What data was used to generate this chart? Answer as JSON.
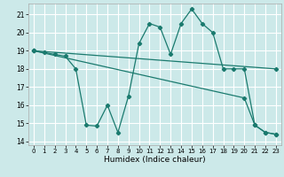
{
  "xlabel": "Humidex (Indice chaleur)",
  "xlim": [
    -0.5,
    23.5
  ],
  "ylim": [
    13.8,
    21.6
  ],
  "yticks": [
    14,
    15,
    16,
    17,
    18,
    19,
    20,
    21
  ],
  "xticks": [
    0,
    1,
    2,
    3,
    4,
    5,
    6,
    7,
    8,
    9,
    10,
    11,
    12,
    13,
    14,
    15,
    16,
    17,
    18,
    19,
    20,
    21,
    22,
    23
  ],
  "background_color": "#cce9e9",
  "grid_color": "#ffffff",
  "line_color": "#1a7a6e",
  "line1_x": [
    0,
    1,
    2,
    3,
    4,
    5,
    6,
    7,
    8,
    9,
    10,
    11,
    12,
    13,
    14,
    15,
    16,
    17,
    18,
    19,
    20,
    21,
    22,
    23
  ],
  "line1_y": [
    19.0,
    18.9,
    18.8,
    18.7,
    18.0,
    14.9,
    14.85,
    16.0,
    14.5,
    16.5,
    19.4,
    20.5,
    20.3,
    18.8,
    20.5,
    21.3,
    20.5,
    20.0,
    18.0,
    18.0,
    18.0,
    14.9,
    14.5,
    14.4
  ],
  "line2_x": [
    0,
    23
  ],
  "line2_y": [
    19.0,
    18.0
  ],
  "line3_x": [
    0,
    20,
    21,
    22,
    23
  ],
  "line3_y": [
    19.0,
    16.4,
    14.9,
    14.5,
    14.4
  ]
}
